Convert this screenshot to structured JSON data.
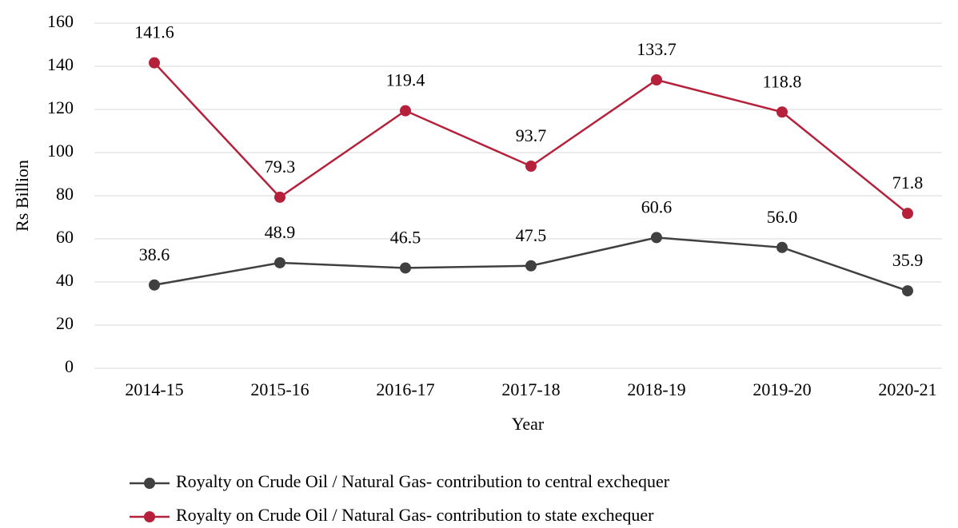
{
  "chart_data": {
    "type": "line",
    "x_label": "Year",
    "y_label": "Rs Billion",
    "categories": [
      "2014-15",
      "2015-16",
      "2016-17",
      "2017-18",
      "2018-19",
      "2019-20",
      "2020-21"
    ],
    "series": [
      {
        "name": "Royalty on Crude Oil / Natural Gas- contribution to central exchequer",
        "color": "#404040",
        "values": [
          38.6,
          48.9,
          46.5,
          47.5,
          60.6,
          56.0,
          35.9
        ],
        "value_labels": [
          "38.6",
          "48.9",
          "46.5",
          "47.5",
          "60.6",
          "56.0",
          "35.9"
        ]
      },
      {
        "name": "Royalty on Crude Oil / Natural Gas- contribution to state exchequer",
        "color": "#b5213a",
        "values": [
          141.6,
          79.3,
          119.4,
          93.7,
          133.7,
          118.8,
          71.8
        ],
        "value_labels": [
          "141.6",
          "79.3",
          "119.4",
          "93.7",
          "133.7",
          "118.8",
          "71.8"
        ]
      }
    ],
    "ylim": [
      0,
      160
    ],
    "yticks": [
      0,
      20,
      40,
      60,
      80,
      100,
      120,
      140,
      160
    ],
    "grid": true,
    "legend": "bottom"
  }
}
